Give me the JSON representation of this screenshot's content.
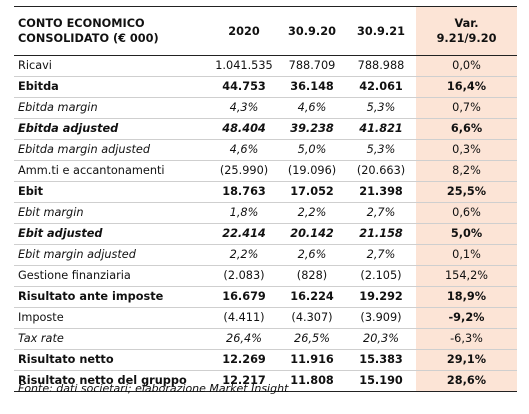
{
  "table": {
    "header": {
      "label_line1": "CONTO ECONOMICO",
      "label_line2": "CONSOLIDATO (€ 000)",
      "col_2020": "2020",
      "col_309_20": "30.9.20",
      "col_309_21": "30.9.21",
      "var_line1": "Var.",
      "var_line2": "9.21/9.20"
    },
    "rows": [
      {
        "label": "Ricavi",
        "v2020": "1.041.535",
        "v20": "788.709",
        "v21": "788.988",
        "var": "0,0%"
      },
      {
        "label": "Ebitda",
        "v2020": "44.753",
        "v20": "36.148",
        "v21": "42.061",
        "var": "16,4%"
      },
      {
        "label": "Ebitda margin",
        "v2020": "4,3%",
        "v20": "4,6%",
        "v21": "5,3%",
        "var": "0,7%"
      },
      {
        "label": "Ebitda adjusted",
        "v2020": "48.404",
        "v20": "39.238",
        "v21": "41.821",
        "var": "6,6%"
      },
      {
        "label": "Ebitda margin adjusted",
        "v2020": "4,6%",
        "v20": "5,0%",
        "v21": "5,3%",
        "var": "0,3%"
      },
      {
        "label": "Amm.ti e accantonamenti",
        "v2020": "(25.990)",
        "v20": "(19.096)",
        "v21": "(20.663)",
        "var": "8,2%"
      },
      {
        "label": "Ebit",
        "v2020": "18.763",
        "v20": "17.052",
        "v21": "21.398",
        "var": "25,5%"
      },
      {
        "label": "Ebit margin",
        "v2020": "1,8%",
        "v20": "2,2%",
        "v21": "2,7%",
        "var": "0,6%"
      },
      {
        "label": "Ebit adjusted",
        "v2020": "22.414",
        "v20": "20.142",
        "v21": "21.158",
        "var": "5,0%"
      },
      {
        "label": "Ebit margin adjusted",
        "v2020": "2,2%",
        "v20": "2,6%",
        "v21": "2,7%",
        "var": "0,1%"
      },
      {
        "label": "Gestione finanziaria",
        "v2020": "(2.083)",
        "v20": "(828)",
        "v21": "(2.105)",
        "var": "154,2%"
      },
      {
        "label": "Risultato ante imposte",
        "v2020": "16.679",
        "v20": "16.224",
        "v21": "19.292",
        "var": "18,9%"
      },
      {
        "label": "Imposte",
        "v2020": "(4.411)",
        "v20": "(4.307)",
        "v21": "(3.909)",
        "var": "-9,2%"
      },
      {
        "label": "Tax rate",
        "v2020": "26,4%",
        "v20": "26,5%",
        "v21": "20,3%",
        "var": "-6,3%"
      },
      {
        "label": "Risultato netto",
        "v2020": "12.269",
        "v20": "11.916",
        "v21": "15.383",
        "var": "29,1%"
      },
      {
        "label": "Risultato netto del gruppo",
        "v2020": "12.217",
        "v20": "11.808",
        "v21": "15.190",
        "var": "28,6%"
      }
    ]
  },
  "source": "Fonte: dati societari; elaborazione Market Insight",
  "colors": {
    "var_column_bg": "#fce4d6",
    "rule": "#222222",
    "gridline": "#cfcfcf"
  }
}
